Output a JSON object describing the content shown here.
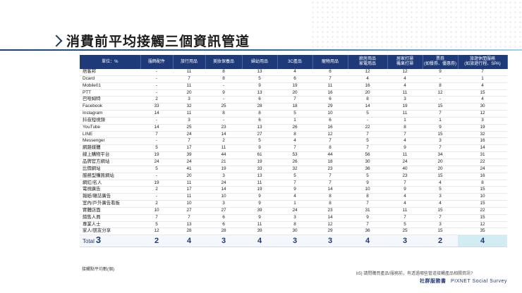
{
  "title": "消費前平均接觸三個資訊管道",
  "table": {
    "header_label": "單位：%",
    "columns": [
      "服飾配件",
      "旅行用品",
      "美妝保養品",
      "婦幼用品",
      "3C產品",
      "寵物用品",
      "廚房用品\n家電用品",
      "居家打掃\n機果打掃",
      "票券\n(如餐券、優惠券)",
      "旅遊休閒服務\n(如旅遊行程、SPA)"
    ],
    "rows": [
      {
        "label": "痞客邦",
        "values": [
          "-",
          "11",
          "8",
          "13",
          "4",
          "6",
          "12",
          "12",
          "9",
          "7"
        ]
      },
      {
        "label": "Dcard",
        "values": [
          "-",
          "7",
          "8",
          "5",
          "6",
          "7",
          "4",
          "4",
          "-",
          "1"
        ]
      },
      {
        "label": "Mobile01",
        "values": [
          "-",
          "11",
          "-",
          "9",
          "19",
          "11",
          "16",
          "4",
          "8",
          "4"
        ]
      },
      {
        "label": "PTT",
        "values": [
          "-",
          "20",
          "9",
          "13",
          "20",
          "16",
          "20",
          "11",
          "12",
          "15"
        ]
      },
      {
        "label": "巴哈姆特",
        "values": [
          "2",
          "3",
          "-",
          "6",
          "7",
          "6",
          "8",
          "3",
          "-",
          "4"
        ]
      },
      {
        "label": "Facebook",
        "values": [
          "33",
          "32",
          "25",
          "28",
          "18",
          "29",
          "14",
          "19",
          "15",
          "30"
        ]
      },
      {
        "label": "Instagram",
        "values": [
          "14",
          "11",
          "8",
          "8",
          "5",
          "10",
          "5",
          "11",
          "7",
          "12"
        ]
      },
      {
        "label": "抖音短視頻",
        "values": [
          "-",
          "3",
          "-",
          "6",
          "1",
          "6",
          "-",
          "1",
          "1",
          "3"
        ]
      },
      {
        "label": "YouTube",
        "values": [
          "14",
          "25",
          "23",
          "13",
          "26",
          "16",
          "22",
          "8",
          "9",
          "19"
        ]
      },
      {
        "label": "LINE",
        "values": [
          "7",
          "24",
          "14",
          "27",
          "8",
          "12",
          "7",
          "7",
          "15",
          "32"
        ]
      },
      {
        "label": "Messenger",
        "values": [
          "-",
          "7",
          "2",
          "5",
          "4",
          "7",
          "5",
          "4",
          "3",
          "16"
        ]
      },
      {
        "label": "網路媒體",
        "values": [
          "5",
          "17",
          "11",
          "9",
          "7",
          "8",
          "7",
          "9",
          "7",
          "14"
        ]
      },
      {
        "label": "線上購物平台",
        "values": [
          "19",
          "39",
          "44",
          "61",
          "53",
          "44",
          "56",
          "11",
          "34",
          "31"
        ]
      },
      {
        "label": "品牌官方網站",
        "values": [
          "24",
          "24",
          "21",
          "19",
          "26",
          "18",
          "30",
          "24",
          "20",
          "22"
        ]
      },
      {
        "label": "比價網站",
        "values": [
          "5",
          "41",
          "19",
          "33",
          "32",
          "23",
          "36",
          "40",
          "20",
          "24"
        ]
      },
      {
        "label": "服務型購買網站",
        "values": [
          "-",
          "20",
          "3",
          "13",
          "5",
          "7",
          "5",
          "23",
          "15",
          "16"
        ]
      },
      {
        "label": "網紅/名人",
        "values": [
          "19",
          "11",
          "24",
          "11",
          "7",
          "7",
          "9",
          "7",
          "4",
          "8"
        ]
      },
      {
        "label": "電視廣告",
        "values": [
          "2",
          "17",
          "14",
          "19",
          "9",
          "14",
          "10",
          "9",
          "5",
          "15"
        ]
      },
      {
        "label": "報紙/雜誌廣告",
        "values": [
          "-",
          "11",
          "10",
          "9",
          "4",
          "8",
          "8",
          "4",
          "3",
          "10"
        ]
      },
      {
        "label": "室內/戶外廣告看板",
        "values": [
          "2",
          "10",
          "3",
          "9",
          "1",
          "8",
          "7",
          "4",
          "4",
          "15"
        ]
      },
      {
        "label": "實體店面",
        "values": [
          "10",
          "27",
          "27",
          "39",
          "24",
          "23",
          "31",
          "11",
          "15",
          "22"
        ]
      },
      {
        "label": "銷售人員",
        "values": [
          "7",
          "7",
          "6",
          "9",
          "3",
          "14",
          "9",
          "7",
          "7",
          "15"
        ]
      },
      {
        "label": "專業人士",
        "values": [
          "5",
          "13",
          "6",
          "11",
          "8",
          "12",
          "7",
          "5",
          "3",
          "12"
        ]
      },
      {
        "label": "家人/朋友分享",
        "values": [
          "12",
          "28",
          "28",
          "39",
          "30",
          "29",
          "36",
          "25",
          "15",
          "35"
        ]
      }
    ],
    "total": {
      "label": "Total",
      "value": "3",
      "values": [
        "2",
        "4",
        "3",
        "4",
        "3",
        "3",
        "4",
        "3",
        "2",
        "4"
      ]
    }
  },
  "footnotes": {
    "avg_note": "接觸點平均數(個)",
    "question": "b5) 請問購買產品/服務前，有透過哪些管道接觸產品相關資訊?",
    "brand_cn": "社群服務書",
    "brand_en": "PIXNET Social Survey"
  },
  "colors": {
    "header_bg": "#1e3a78",
    "total_text": "#1e3a78",
    "total_highlight": "#d2ecf3"
  }
}
